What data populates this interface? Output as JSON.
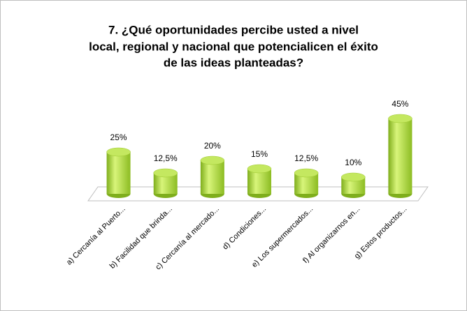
{
  "chart_data": {
    "type": "cylinder",
    "title": [
      "7. ¿Qué oportunidades percibe usted a nivel",
      "local, regional y nacional que potencialicen el éxito",
      "de las ideas planteadas?"
    ],
    "categories": [
      "a) Cercanía al Puerto...",
      "b) Facilidad que brinda...",
      "c) Cercanía al mercado...",
      "d) Condiciones...",
      "e) Los supermercados...",
      "f) Al organizarnos en...",
      "g) Estos productos..."
    ],
    "values": [
      25,
      12.5,
      20,
      15,
      12.5,
      10,
      45
    ],
    "value_labels": [
      "25%",
      "12,5%",
      "20%",
      "15%",
      "12,5%",
      "10%",
      "45%"
    ],
    "color": "#a6d13a",
    "ylim": [
      0,
      45
    ]
  }
}
